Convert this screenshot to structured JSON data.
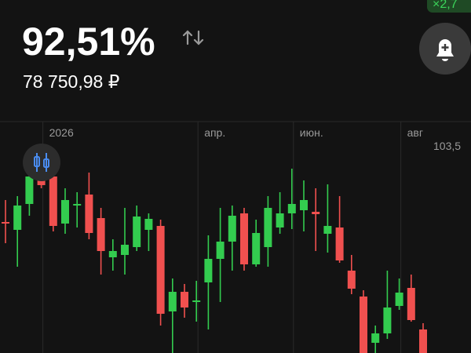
{
  "header": {
    "return": "92,51%",
    "value": "78 750,98 ₽",
    "multiplier": "×2,7"
  },
  "chart_data": {
    "type": "candlestick",
    "categories": [
      null,
      null,
      null,
      "2026",
      null,
      null,
      null,
      null,
      null,
      null,
      null,
      null,
      null,
      null,
      null,
      null,
      "апр.",
      null,
      null,
      null,
      null,
      null,
      null,
      null,
      "июн.",
      null,
      null,
      null,
      null,
      null,
      null,
      null,
      null,
      "авг",
      null,
      null
    ],
    "open": [
      101.075,
      100.825,
      101.65,
      102.4,
      102.525,
      101.025,
      101.6,
      101.95,
      101.2,
      99.95,
      100.025,
      100.275,
      100.825,
      100.95,
      98.225,
      98.85,
      98.525,
      99.15,
      99.9,
      100.45,
      101.35,
      99.725,
      100.275,
      100.9,
      101.35,
      101.45,
      101.4,
      100.7,
      100.9,
      99.525,
      98.7,
      97.225,
      97.525,
      98.4,
      98.975,
      97.65
    ],
    "high": [
      101.775,
      101.9,
      102.775,
      102.775,
      102.775,
      102.15,
      102.025,
      102.65,
      101.525,
      100.525,
      101.525,
      101.6,
      101.35,
      101.15,
      99.275,
      99.1,
      99.2,
      100.65,
      101.525,
      101.6,
      101.525,
      101.15,
      101.9,
      102.025,
      102.775,
      102.4,
      102.15,
      102.275,
      101.9,
      100.025,
      98.9,
      97.775,
      99.525,
      99.275,
      99.4,
      97.85
    ],
    "low": [
      100.4,
      99.65,
      101.275,
      102.15,
      100.775,
      100.7,
      100.9,
      100.525,
      99.4,
      99.525,
      99.4,
      100.15,
      100.15,
      97.775,
      96.9,
      98.025,
      97.9,
      97.65,
      98.525,
      99.525,
      99.525,
      99.65,
      99.65,
      100.7,
      100.85,
      100.775,
      100.15,
      100.1,
      99.775,
      98.775,
      96.9,
      96.9,
      97.35,
      98.275,
      97.9,
      96.9
    ],
    "close": [
      101.05,
      101.6,
      102.525,
      102.25,
      100.95,
      101.775,
      101.65,
      100.725,
      100.15,
      100.15,
      100.35,
      101.25,
      101.175,
      98.15,
      98.85,
      98.35,
      98.575,
      99.9,
      100.45,
      101.275,
      99.725,
      100.725,
      101.525,
      101.35,
      101.65,
      101.775,
      101.325,
      100.95,
      99.85,
      98.95,
      96.9,
      97.525,
      98.35,
      98.825,
      97.95,
      96.9
    ],
    "up_color": "#33cc4f",
    "down_color": "#f0504f",
    "ylim": [
      96.9,
      104.275
    ],
    "yticks": [
      {
        "value": 103.5,
        "label": "103,5"
      }
    ]
  }
}
